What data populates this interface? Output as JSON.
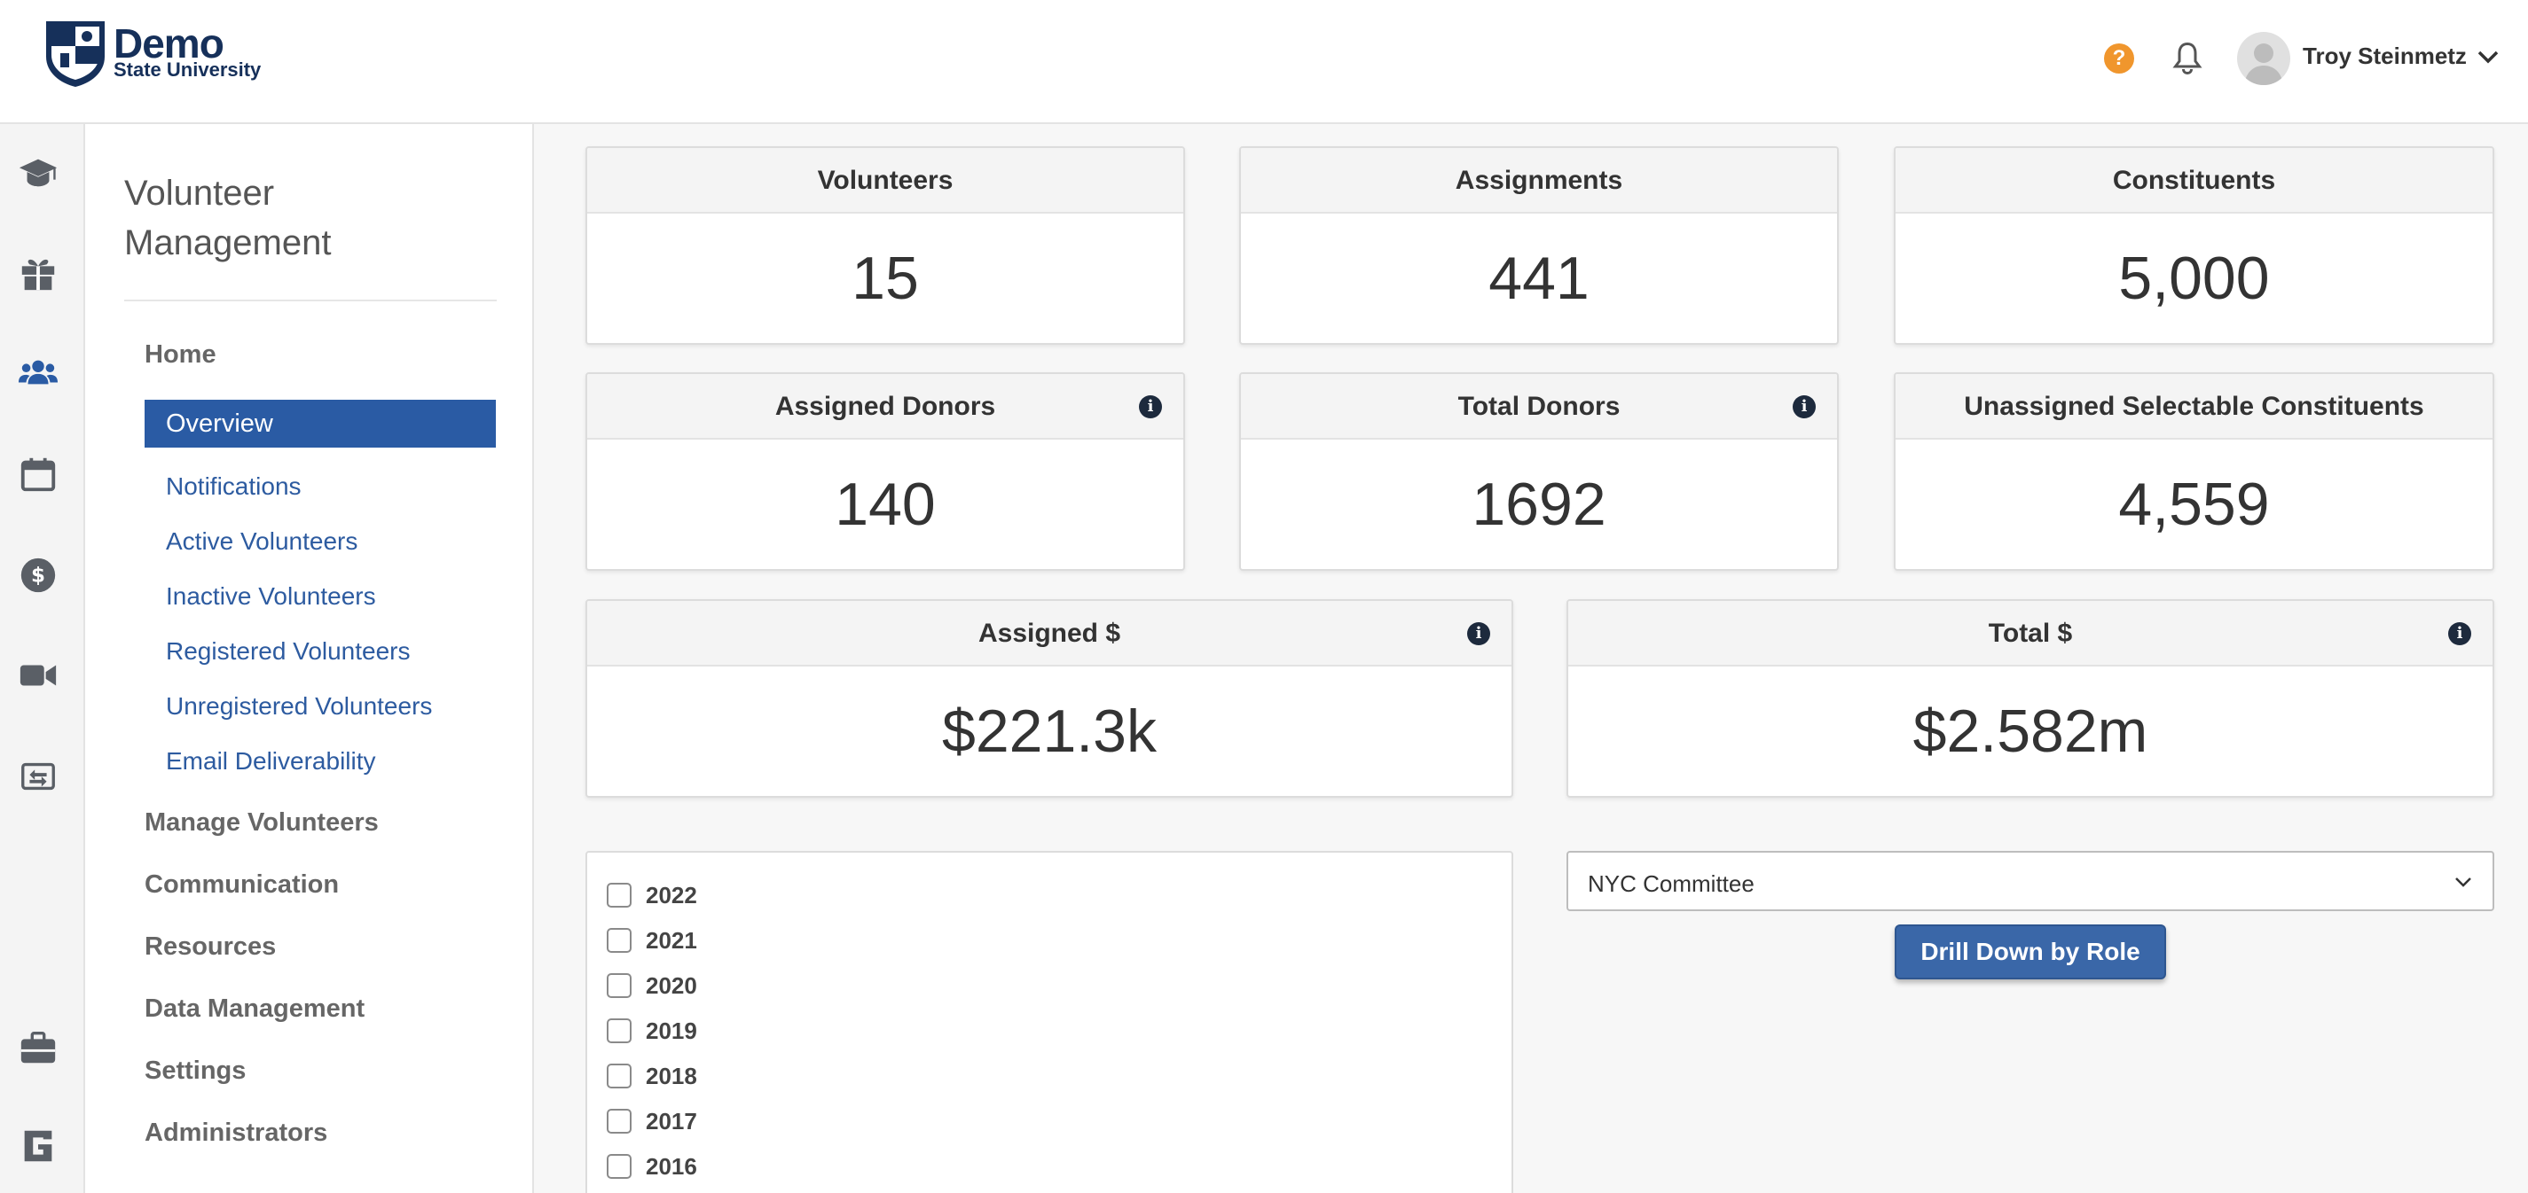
{
  "brand": {
    "line1": "Demo",
    "line2": "State University",
    "primary_color": "#16305a"
  },
  "header": {
    "help_label": "?",
    "user_name": "Troy Steinmetz"
  },
  "rail": {
    "icons": [
      "graduation-cap-icon",
      "gift-icon",
      "users-icon",
      "calendar-icon",
      "dollar-circle-icon",
      "video-camera-icon",
      "sync-icon",
      "briefcase-icon",
      "g-logo-icon"
    ],
    "active": "users-icon"
  },
  "sidebar": {
    "title": "Volunteer Management",
    "home": "Home",
    "sub_items": [
      {
        "label": "Overview",
        "active": true
      },
      {
        "label": "Notifications"
      },
      {
        "label": "Active Volunteers"
      },
      {
        "label": "Inactive Volunteers"
      },
      {
        "label": "Registered Volunteers"
      },
      {
        "label": "Unregistered Volunteers"
      },
      {
        "label": "Email Deliverability"
      }
    ],
    "sections": [
      "Manage Volunteers",
      "Communication",
      "Resources",
      "Data Management",
      "Settings",
      "Administrators"
    ]
  },
  "stats": [
    {
      "title": "Volunteers",
      "value": "15",
      "info": false
    },
    {
      "title": "Assignments",
      "value": "441",
      "info": false
    },
    {
      "title": "Constituents",
      "value": "5,000",
      "info": false
    },
    {
      "title": "Assigned Donors",
      "value": "140",
      "info": true
    },
    {
      "title": "Total Donors",
      "value": "1692",
      "info": true
    },
    {
      "title": "Unassigned Selectable Constituents",
      "value": "4,559",
      "info": false
    },
    {
      "title": "Assigned $",
      "value": "$221.3k",
      "info": true
    },
    {
      "title": "Total $",
      "value": "$2.582m",
      "info": true
    }
  ],
  "years": [
    "2022",
    "2021",
    "2020",
    "2019",
    "2018",
    "2017",
    "2016"
  ],
  "committee_select": {
    "value": "NYC Committee"
  },
  "drill_button": "Drill Down by Role",
  "colors": {
    "accent": "#2a5ba4",
    "link": "#2d5ba0",
    "help": "#f0962d"
  }
}
